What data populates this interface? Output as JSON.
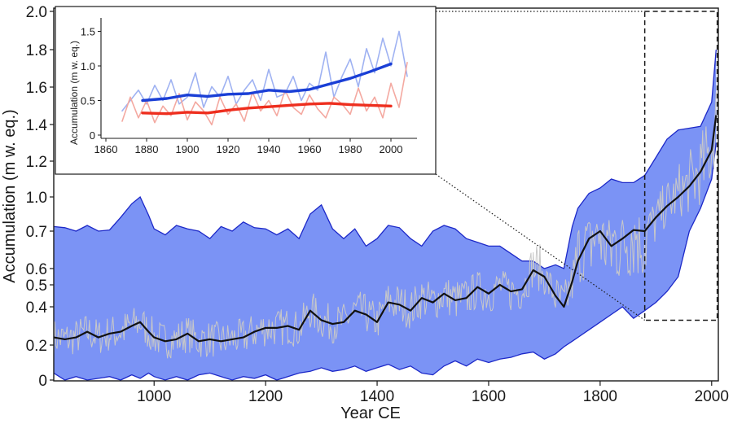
{
  "chart_data": [
    {
      "type": "area",
      "xlabel": "Year CE",
      "ylabel": "Accumulation (m w. eq.)",
      "xlim": [
        820,
        2012
      ],
      "y_ticks": [
        0,
        0.2,
        0.4,
        0.5,
        0.6,
        0.7,
        1.0,
        1.2,
        1.4,
        1.6,
        1.8,
        2.0
      ],
      "y_tick_labels": [
        "0",
        "0.2",
        "0.4",
        "0.5",
        "0.6",
        "0.7",
        "1.0",
        "1.2",
        "1.4",
        "1.6",
        "1.8",
        "2.0"
      ],
      "x_ticks": [
        1000,
        1200,
        1400,
        1600,
        1800,
        2000
      ],
      "x_tick_labels": [
        "1000",
        "1200",
        "1400",
        "1600",
        "1800",
        "2000"
      ],
      "grid": false,
      "colors": {
        "band_fill": "#7b93f5",
        "band_edge": "#1c28c8",
        "annual": "#c8c8c8",
        "mean": "#111111"
      },
      "zoom_box": {
        "x": [
          1880,
          2010
        ],
        "y": [
          0.33,
          2.0
        ]
      },
      "x": [
        820,
        840,
        860,
        880,
        900,
        920,
        940,
        960,
        975,
        990,
        1000,
        1020,
        1040,
        1060,
        1080,
        1100,
        1120,
        1140,
        1160,
        1180,
        1200,
        1220,
        1240,
        1260,
        1280,
        1300,
        1320,
        1340,
        1360,
        1380,
        1400,
        1420,
        1440,
        1460,
        1480,
        1500,
        1520,
        1540,
        1560,
        1580,
        1600,
        1620,
        1640,
        1660,
        1680,
        1700,
        1720,
        1735,
        1750,
        1760,
        1780,
        1800,
        1820,
        1840,
        1860,
        1880,
        1900,
        1920,
        1940,
        1960,
        1980,
        2000,
        2008
      ],
      "series": [
        {
          "role": "upper-bound",
          "values": [
            0.74,
            0.73,
            0.7,
            0.75,
            0.7,
            0.71,
            0.82,
            0.94,
            1.0,
            0.84,
            0.72,
            0.69,
            0.75,
            0.72,
            0.7,
            0.68,
            0.74,
            0.7,
            0.78,
            0.73,
            0.72,
            0.69,
            0.72,
            0.68,
            0.85,
            0.93,
            0.72,
            0.68,
            0.72,
            0.66,
            0.68,
            0.75,
            0.73,
            0.68,
            0.66,
            0.7,
            0.75,
            0.72,
            0.68,
            0.67,
            0.66,
            0.66,
            0.64,
            0.62,
            0.62,
            0.6,
            0.61,
            0.6,
            0.74,
            0.9,
            1.02,
            1.05,
            1.1,
            1.08,
            1.08,
            1.12,
            1.22,
            1.32,
            1.37,
            1.38,
            1.39,
            1.52,
            1.8
          ]
        },
        {
          "role": "lower-bound",
          "values": [
            0.04,
            0.0,
            0.02,
            0.0,
            0.01,
            0.02,
            0.0,
            0.03,
            0.01,
            0.04,
            0.02,
            0.0,
            0.02,
            0.0,
            0.03,
            0.04,
            0.02,
            0.0,
            0.02,
            0.01,
            0.03,
            0.0,
            0.02,
            0.04,
            0.05,
            0.07,
            0.05,
            0.06,
            0.08,
            0.05,
            0.07,
            0.09,
            0.06,
            0.08,
            0.04,
            0.03,
            0.08,
            0.11,
            0.08,
            0.12,
            0.1,
            0.12,
            0.13,
            0.15,
            0.16,
            0.12,
            0.15,
            0.19,
            0.22,
            0.24,
            0.28,
            0.32,
            0.36,
            0.4,
            0.34,
            0.38,
            0.42,
            0.47,
            0.55,
            0.7,
            0.9,
            1.1,
            1.3
          ]
        },
        {
          "name": "",
          "role": "mean",
          "values": [
            0.24,
            0.23,
            0.24,
            0.27,
            0.24,
            0.26,
            0.27,
            0.3,
            0.32,
            0.27,
            0.24,
            0.22,
            0.23,
            0.26,
            0.22,
            0.23,
            0.22,
            0.23,
            0.24,
            0.27,
            0.29,
            0.29,
            0.3,
            0.28,
            0.38,
            0.33,
            0.31,
            0.32,
            0.38,
            0.36,
            0.32,
            0.42,
            0.41,
            0.38,
            0.44,
            0.42,
            0.46,
            0.43,
            0.44,
            0.49,
            0.46,
            0.5,
            0.47,
            0.48,
            0.59,
            0.55,
            0.45,
            0.4,
            0.52,
            0.62,
            0.68,
            0.7,
            0.66,
            0.68,
            0.71,
            0.7,
            0.82,
            0.92,
            1.0,
            1.06,
            1.14,
            1.26,
            1.45
          ]
        }
      ]
    },
    {
      "type": "line",
      "xlabel": "",
      "ylabel": "Accumulation (m w. eq.)",
      "xlim": [
        1860,
        2012
      ],
      "ylim": [
        0,
        1.6
      ],
      "x_ticks": [
        1860,
        1880,
        1900,
        1920,
        1940,
        1960,
        1980,
        2000
      ],
      "x_tick_labels": [
        "1860",
        "1880",
        "1900",
        "1920",
        "1940",
        "1960",
        "1980",
        "2000"
      ],
      "y_ticks": [
        0,
        0.5,
        1.0,
        1.5
      ],
      "y_tick_labels": [
        "0",
        "0.5",
        "1.0",
        "1.5"
      ],
      "grid": false,
      "x": [
        1868,
        1872,
        1876,
        1880,
        1884,
        1888,
        1892,
        1896,
        1900,
        1904,
        1908,
        1912,
        1916,
        1920,
        1924,
        1928,
        1932,
        1936,
        1940,
        1944,
        1948,
        1952,
        1956,
        1960,
        1964,
        1968,
        1972,
        1976,
        1980,
        1984,
        1988,
        1992,
        1996,
        2000,
        2004,
        2008
      ],
      "series": [
        {
          "name": "",
          "role": "annual",
          "color": "#9fb2f2",
          "values": [
            0.35,
            0.5,
            0.65,
            0.45,
            0.72,
            0.5,
            0.8,
            0.45,
            0.55,
            0.9,
            0.4,
            0.7,
            0.55,
            0.85,
            0.45,
            0.65,
            0.8,
            0.5,
            0.95,
            0.55,
            0.6,
            0.85,
            0.5,
            0.75,
            0.65,
            1.2,
            0.55,
            0.85,
            1.1,
            0.7,
            1.25,
            0.9,
            1.4,
            1.0,
            1.5,
            0.85
          ]
        },
        {
          "name": "",
          "role": "annual",
          "color": "#f4a9a1",
          "values": [
            0.2,
            0.55,
            0.25,
            0.5,
            0.18,
            0.42,
            0.28,
            0.6,
            0.22,
            0.48,
            0.35,
            0.15,
            0.55,
            0.3,
            0.45,
            0.2,
            0.62,
            0.35,
            0.5,
            0.28,
            0.65,
            0.4,
            0.3,
            0.58,
            0.38,
            0.25,
            0.55,
            0.45,
            0.3,
            0.68,
            0.35,
            0.55,
            0.25,
            0.75,
            0.4,
            1.05
          ]
        },
        {
          "name": "",
          "role": "smoothed",
          "color": "#1a3fd6",
          "x": [
            1878,
            1890,
            1900,
            1910,
            1920,
            1930,
            1940,
            1950,
            1960,
            1970,
            1980,
            1990,
            2000
          ],
          "values": [
            0.5,
            0.53,
            0.58,
            0.56,
            0.59,
            0.6,
            0.65,
            0.63,
            0.66,
            0.74,
            0.82,
            0.92,
            1.03
          ]
        },
        {
          "name": "",
          "role": "smoothed",
          "color": "#ee2e1e",
          "x": [
            1878,
            1890,
            1900,
            1910,
            1920,
            1930,
            1940,
            1950,
            1960,
            1970,
            1980,
            1990,
            2000
          ],
          "values": [
            0.32,
            0.31,
            0.33,
            0.32,
            0.36,
            0.39,
            0.41,
            0.43,
            0.45,
            0.46,
            0.44,
            0.43,
            0.42
          ]
        }
      ]
    }
  ]
}
